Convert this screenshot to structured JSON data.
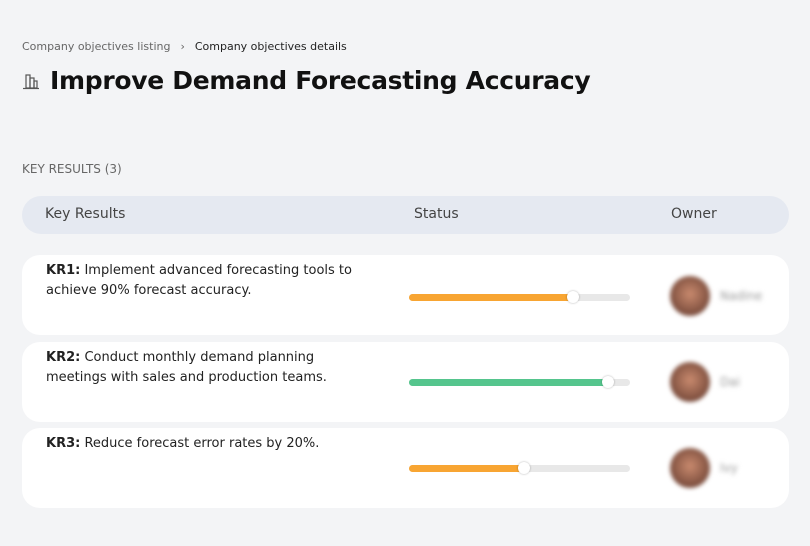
{
  "breadcrumb": {
    "items": [
      "Company objectives listing",
      "Company objectives details"
    ],
    "separator": "›"
  },
  "page": {
    "title": "Improve Demand Forecasting Accuracy",
    "icon": "buildings-icon"
  },
  "section": {
    "label": "KEY RESULTS (3)"
  },
  "table": {
    "headers": [
      "Key Results",
      "Status",
      "Owner"
    ],
    "rows": [
      {
        "code": "KR1:",
        "text": "Implement advanced forecasting tools to achieve 90% forecast accuracy.",
        "progress": 74,
        "color": "#f8a532",
        "owner": "Nadine"
      },
      {
        "code": "KR2:",
        "text": "Conduct monthly demand planning meetings with sales and production teams.",
        "progress": 90,
        "color": "#55c58d",
        "owner": "Dai"
      },
      {
        "code": "KR3:",
        "text": "Reduce forecast error rates by 20%.",
        "progress": 52,
        "color": "#f8a532",
        "owner": "Ivy"
      }
    ]
  }
}
